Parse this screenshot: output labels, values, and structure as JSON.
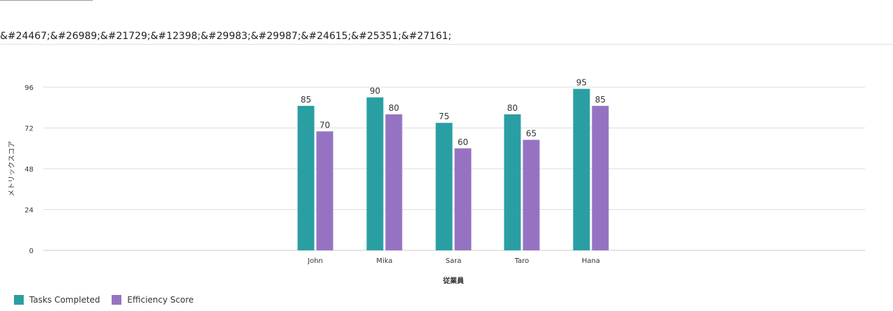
{
  "page": {
    "heading": "&#24467;&#26989;&#21729;&#12398;&#29983;&#29987;&#24615;&#25351;&#27161;"
  },
  "chart_data": {
    "type": "bar",
    "categories": [
      "John",
      "Mika",
      "Sara",
      "Taro",
      "Hana"
    ],
    "series": [
      {
        "name": "Tasks Completed",
        "values": [
          85,
          90,
          75,
          80,
          95
        ],
        "color": "#2a9fa3"
      },
      {
        "name": "Efficiency Score",
        "values": [
          70,
          80,
          60,
          65,
          85
        ],
        "color": "#9673c2"
      }
    ],
    "xlabel": "従業員",
    "ylabel": "メトリックスコア",
    "yticks": [
      0,
      24,
      48,
      72,
      96
    ],
    "ylim": [
      0,
      96
    ],
    "grid": true,
    "legend": "bottom-left",
    "data_labels": true
  }
}
